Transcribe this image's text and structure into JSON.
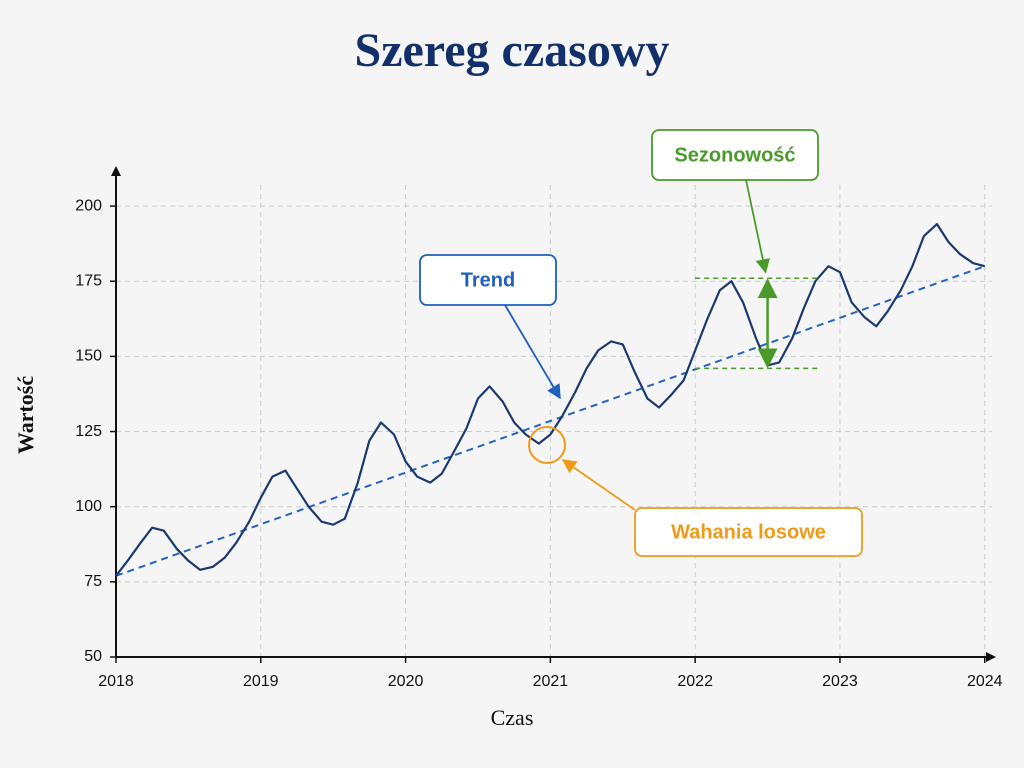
{
  "chart_data": {
    "type": "line",
    "title": "Szereg czasowy",
    "x_label": "Czas",
    "y_label": "Wartość",
    "color": "#1b3a70",
    "x": [
      2018.0,
      2018.08,
      2018.17,
      2018.25,
      2018.33,
      2018.42,
      2018.5,
      2018.58,
      2018.67,
      2018.75,
      2018.83,
      2018.92,
      2019.0,
      2019.08,
      2019.17,
      2019.25,
      2019.33,
      2019.42,
      2019.5,
      2019.58,
      2019.67,
      2019.75,
      2019.83,
      2019.92,
      2020.0,
      2020.08,
      2020.17,
      2020.25,
      2020.33,
      2020.42,
      2020.5,
      2020.58,
      2020.67,
      2020.75,
      2020.83,
      2020.92,
      2021.0,
      2021.08,
      2021.17,
      2021.25,
      2021.33,
      2021.42,
      2021.5,
      2021.58,
      2021.67,
      2021.75,
      2021.83,
      2021.92,
      2022.0,
      2022.08,
      2022.17,
      2022.25,
      2022.33,
      2022.42,
      2022.5,
      2022.58,
      2022.67,
      2022.75,
      2022.83,
      2022.92,
      2023.0,
      2023.08,
      2023.17,
      2023.25,
      2023.33,
      2023.42,
      2023.5,
      2023.58,
      2023.67,
      2023.75,
      2023.83,
      2023.92,
      2024.0
    ],
    "values": [
      77,
      82,
      88,
      93,
      92,
      86,
      82,
      79,
      80,
      83,
      88,
      95,
      103,
      110,
      112,
      106,
      100,
      95,
      94,
      96,
      108,
      122,
      128,
      124,
      115,
      110,
      108,
      111,
      118,
      126,
      136,
      140,
      135,
      128,
      124,
      121,
      124,
      130,
      138,
      146,
      152,
      155,
      154,
      145,
      136,
      133,
      137,
      142,
      152,
      162,
      172,
      175,
      168,
      156,
      147,
      148,
      156,
      166,
      175,
      180,
      178,
      168,
      163,
      160,
      165,
      172,
      180,
      190,
      194,
      188,
      184,
      181,
      180
    ],
    "trend": {
      "color": "#2563c0",
      "x": [
        2018,
        2024
      ],
      "values": [
        77,
        180
      ]
    },
    "seasonal_range": {
      "color": "#4a9a2a",
      "x": [
        2022.0,
        2022.85
      ],
      "values": [
        146,
        176
      ],
      "arrow_x": 2022.5
    },
    "annotations": [
      {
        "text": "Trend",
        "color": "#1f5fbf"
      },
      {
        "text": "Sezonowość",
        "color": "#4a9a2a"
      },
      {
        "text": "Wahania losowe",
        "color": "#f09a18"
      }
    ],
    "xlim": [
      2018,
      2024.05
    ],
    "xticks": [
      2018,
      2019,
      2020,
      2021,
      2022,
      2023,
      2024
    ],
    "ylim": [
      50,
      212
    ],
    "yticks": [
      50,
      75,
      100,
      125,
      150,
      175,
      200
    ],
    "grid": true
  }
}
